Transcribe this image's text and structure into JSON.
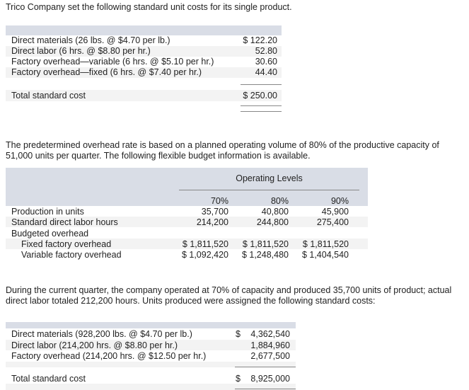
{
  "intro": "Trico Company set the following standard unit costs for its single product.",
  "unit_costs": {
    "rows": [
      {
        "label": "Direct materials (26 lbs. @ $4.70 per lb.)",
        "value": "$ 122.20"
      },
      {
        "label": "Direct labor (6 hrs. @ $8.80 per hr.)",
        "value": "52.80"
      },
      {
        "label": "Factory overhead—variable (6 hrs. @ $5.10 per hr.)",
        "value": "30.60"
      },
      {
        "label": "Factory overhead—fixed (6 hrs. @ $7.40 per hr.)",
        "value": "44.40"
      }
    ],
    "total_label": "Total standard cost",
    "total_value": "$ 250.00"
  },
  "paragraph2": "The predetermined overhead rate is based on a planned operating volume of 80% of the productive capacity of 51,000 units per quarter. The following flexible budget information is available.",
  "flex": {
    "group_header": "Operating Levels",
    "levels": [
      "70%",
      "80%",
      "90%"
    ],
    "rows": [
      {
        "label": "Production in units",
        "values": [
          "35,700",
          "40,800",
          "45,900"
        ]
      },
      {
        "label": "Standard direct labor hours",
        "values": [
          "214,200",
          "244,800",
          "275,400"
        ]
      },
      {
        "label": "Budgeted overhead",
        "values": [
          "",
          "",
          ""
        ]
      },
      {
        "label": "Fixed factory overhead",
        "values": [
          "$ 1,811,520",
          "$ 1,811,520",
          "$ 1,811,520"
        ]
      },
      {
        "label": "Variable factory overhead",
        "values": [
          "$ 1,092,420",
          "$ 1,248,480",
          "$ 1,404,540"
        ]
      }
    ]
  },
  "paragraph3": "During the current quarter, the company operated at 70% of capacity and produced 35,700 units of product; actual direct labor totaled 212,200 hours. Units produced were assigned the following standard costs:",
  "assigned": {
    "rows": [
      {
        "label": "Direct materials (928,200 lbs. @ $4.70 per lb.)",
        "value": "4,362,540"
      },
      {
        "label": "Direct labor (214,200 hrs. @ $8.80 per hr.)",
        "value": "1,884,960"
      },
      {
        "label": "Factory overhead (214,200 hrs. @ $12.50 per hr.)",
        "value": "2,677,500"
      }
    ],
    "currency": "$",
    "total_label": "Total standard cost",
    "total_value": "8,925,000"
  }
}
